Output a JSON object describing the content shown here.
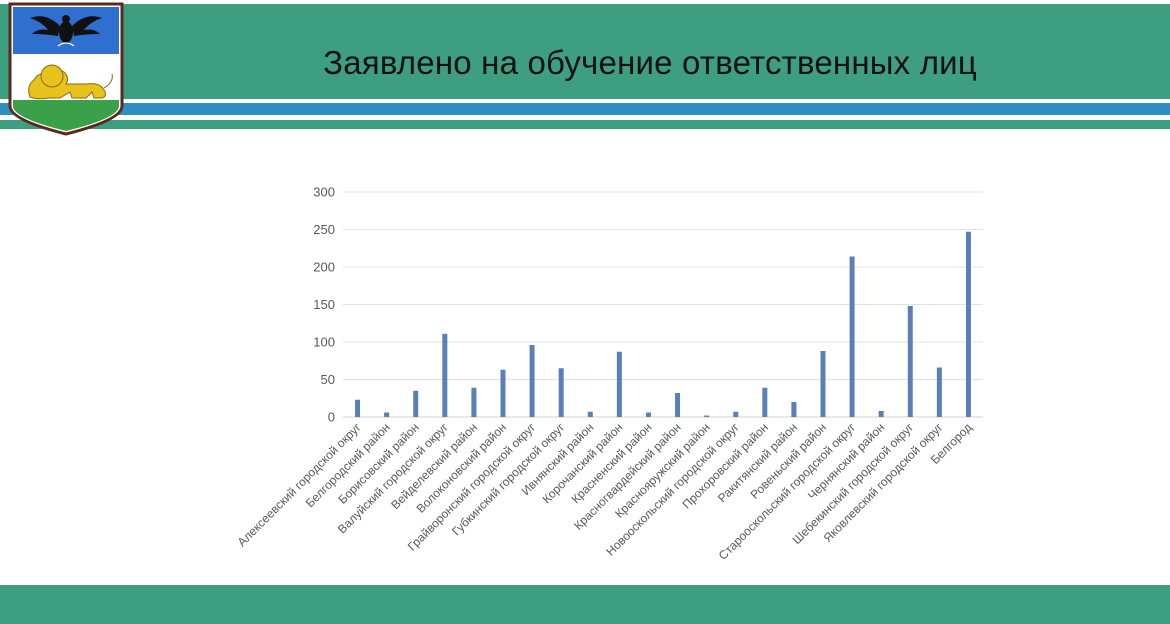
{
  "slide": {
    "title": "Заявлено на обучение ответственных лиц"
  },
  "colors": {
    "header_green": "#3e9e80",
    "stripe_blue": "#2f8fc3",
    "bar_blue": "#5b7fb7",
    "gridline": "#e3e3e3",
    "axis_text": "#595959"
  },
  "icons": {
    "emblem": "belgorod-coat-of-arms-icon"
  },
  "chart_data": {
    "type": "bar",
    "title": "",
    "xlabel": "",
    "ylabel": "",
    "ylim": [
      0,
      300
    ],
    "yticks": [
      0,
      50,
      100,
      150,
      200,
      250,
      300
    ],
    "grid": true,
    "legend": "none",
    "categories": [
      "Алексеевский городской округ",
      "Белгородский район",
      "Борисовский район",
      "Валуйский городской округ",
      "Вейделевский район",
      "Волоконовский район",
      "Грайворонский городской округ",
      "Губкинский городской округ",
      "Ивнянский район",
      "Корочанский район",
      "Красненский район",
      "Красногвардейский район",
      "Краснояружский район",
      "Новооскольский городской округ",
      "Прохоровский район",
      "Ракитянский район",
      "Ровеньский район",
      "Старооскольский городской округ",
      "Чернянский район",
      "Шебекинский городской округ",
      "Яковлевский городской округ",
      "Белгород"
    ],
    "values": [
      23,
      6,
      35,
      111,
      39,
      63,
      96,
      65,
      7,
      87,
      6,
      32,
      2,
      7,
      39,
      20,
      88,
      214,
      8,
      148,
      66,
      247
    ]
  }
}
